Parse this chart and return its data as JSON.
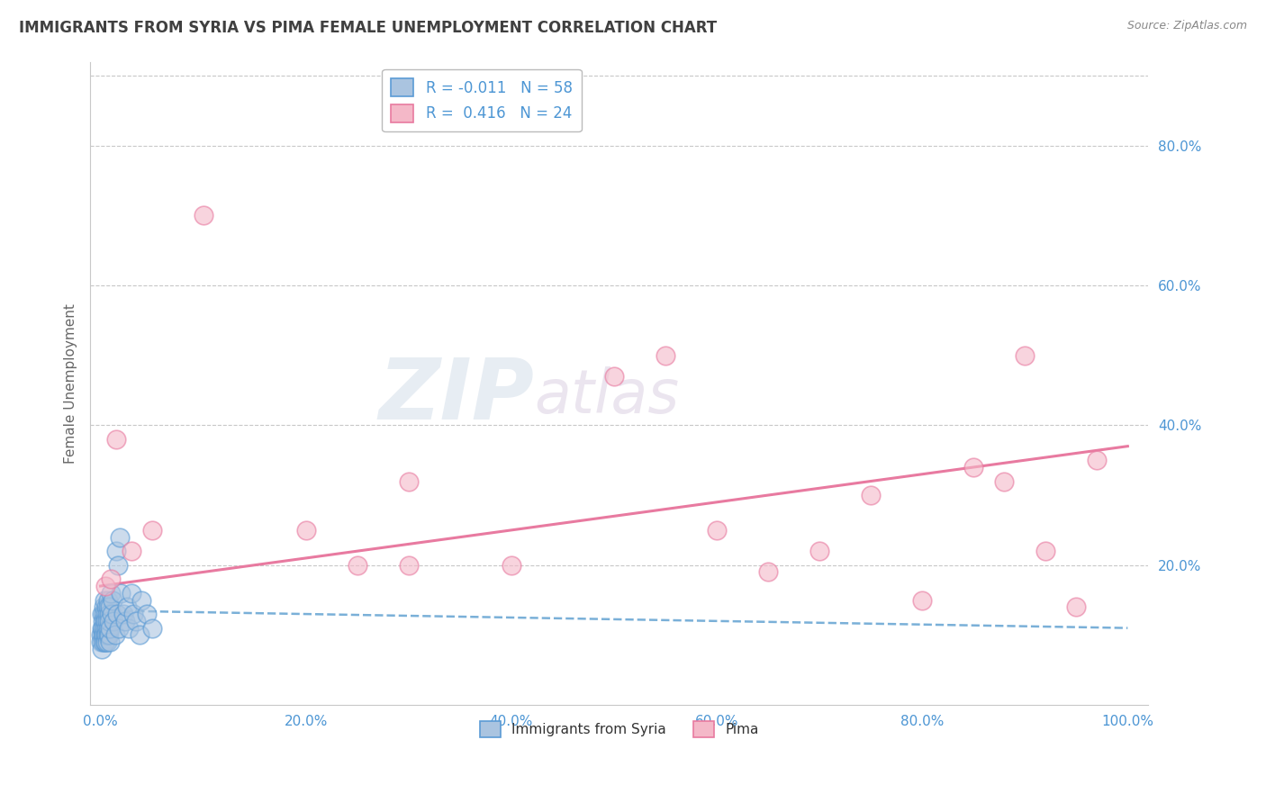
{
  "title": "IMMIGRANTS FROM SYRIA VS PIMA FEMALE UNEMPLOYMENT CORRELATION CHART",
  "source": "Source: ZipAtlas.com",
  "xlabel_label": "Immigrants from Syria",
  "ylabel_label": "Female Unemployment",
  "x_tick_labels": [
    "0.0%",
    "20.0%",
    "40.0%",
    "60.0%",
    "80.0%",
    "100.0%"
  ],
  "x_tick_values": [
    0,
    20,
    40,
    60,
    80,
    100
  ],
  "y_tick_labels": [
    "20.0%",
    "40.0%",
    "60.0%",
    "80.0%"
  ],
  "y_tick_values": [
    20,
    40,
    60,
    80
  ],
  "xlim": [
    -1,
    102
  ],
  "ylim": [
    0,
    92
  ],
  "r_blue": "-0.011",
  "n_blue": "58",
  "r_pink": "0.416",
  "n_pink": "24",
  "legend_labels": [
    "Immigrants from Syria",
    "Pima"
  ],
  "blue_color": "#aac4e0",
  "pink_color": "#f4b8c8",
  "blue_edge_color": "#5b9bd5",
  "pink_edge_color": "#e87aa0",
  "blue_line_color": "#7ab0d8",
  "pink_line_color": "#e87aa0",
  "watermark_zip": "ZIP",
  "watermark_atlas": "atlas",
  "background_color": "#ffffff",
  "grid_color": "#c8c8c8",
  "title_color": "#404040",
  "blue_scatter_x": [
    0.05,
    0.08,
    0.1,
    0.12,
    0.15,
    0.18,
    0.2,
    0.22,
    0.25,
    0.28,
    0.3,
    0.32,
    0.35,
    0.38,
    0.4,
    0.42,
    0.45,
    0.48,
    0.5,
    0.52,
    0.55,
    0.58,
    0.6,
    0.62,
    0.65,
    0.68,
    0.7,
    0.72,
    0.75,
    0.78,
    0.8,
    0.82,
    0.85,
    0.88,
    0.9,
    0.95,
    1.0,
    1.1,
    1.2,
    1.3,
    1.4,
    1.5,
    1.6,
    1.7,
    1.8,
    1.9,
    2.0,
    2.2,
    2.4,
    2.6,
    2.8,
    3.0,
    3.2,
    3.5,
    3.8,
    4.0,
    4.5,
    5.0
  ],
  "blue_scatter_y": [
    10,
    9,
    11,
    8,
    13,
    10,
    12,
    9,
    11,
    14,
    10,
    13,
    9,
    12,
    11,
    15,
    10,
    13,
    12,
    9,
    14,
    11,
    10,
    13,
    9,
    12,
    15,
    10,
    11,
    14,
    13,
    10,
    12,
    9,
    11,
    14,
    16,
    13,
    15,
    12,
    10,
    22,
    13,
    20,
    11,
    24,
    16,
    13,
    12,
    14,
    11,
    16,
    13,
    12,
    10,
    15,
    13,
    11
  ],
  "pink_scatter_x": [
    0.5,
    1.0,
    1.5,
    3.0,
    5.0,
    30.0,
    50.0,
    60.0,
    65.0,
    70.0,
    75.0,
    80.0,
    85.0,
    88.0,
    90.0,
    92.0,
    95.0,
    97.0,
    30.0,
    25.0,
    55.0,
    40.0,
    20.0,
    10.0
  ],
  "pink_scatter_y": [
    17,
    18,
    38,
    22,
    25,
    32,
    47,
    25,
    19,
    22,
    30,
    15,
    34,
    32,
    50,
    22,
    14,
    35,
    20,
    20,
    50,
    20,
    25,
    70
  ],
  "blue_trendline_x": [
    0,
    100
  ],
  "blue_trendline_y": [
    13.5,
    11.0
  ],
  "pink_trendline_x": [
    0,
    100
  ],
  "pink_trendline_y": [
    17.0,
    37.0
  ]
}
